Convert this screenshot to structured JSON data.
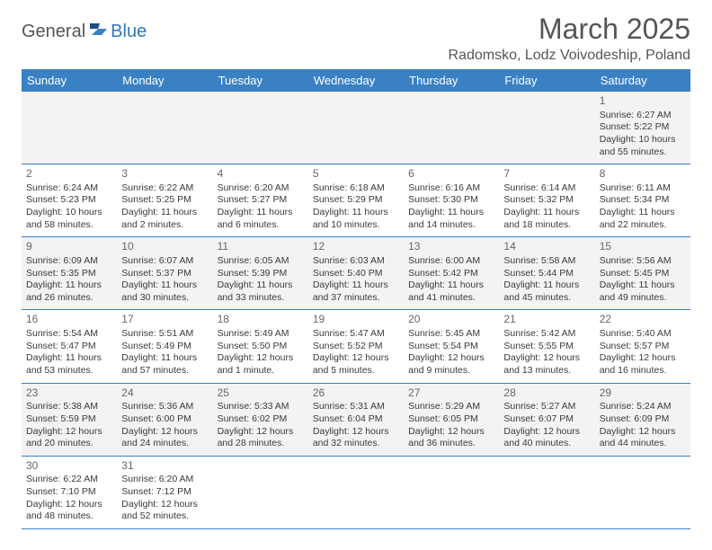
{
  "logo": {
    "part1": "General",
    "part2": "Blue"
  },
  "title": "March 2025",
  "location": "Radomsko, Lodz Voivodeship, Poland",
  "colors": {
    "header_bg": "#3a81c4",
    "header_text": "#ffffff",
    "row_alt_bg": "#f3f3f4",
    "border": "#3a81c4",
    "logo_blue": "#3178b8",
    "text": "#3a3a3a"
  },
  "weekdays": [
    "Sunday",
    "Monday",
    "Tuesday",
    "Wednesday",
    "Thursday",
    "Friday",
    "Saturday"
  ],
  "weeks": [
    [
      null,
      null,
      null,
      null,
      null,
      null,
      {
        "d": "1",
        "sr": "Sunrise: 6:27 AM",
        "ss": "Sunset: 5:22 PM",
        "dl1": "Daylight: 10 hours",
        "dl2": "and 55 minutes."
      }
    ],
    [
      {
        "d": "2",
        "sr": "Sunrise: 6:24 AM",
        "ss": "Sunset: 5:23 PM",
        "dl1": "Daylight: 10 hours",
        "dl2": "and 58 minutes."
      },
      {
        "d": "3",
        "sr": "Sunrise: 6:22 AM",
        "ss": "Sunset: 5:25 PM",
        "dl1": "Daylight: 11 hours",
        "dl2": "and 2 minutes."
      },
      {
        "d": "4",
        "sr": "Sunrise: 6:20 AM",
        "ss": "Sunset: 5:27 PM",
        "dl1": "Daylight: 11 hours",
        "dl2": "and 6 minutes."
      },
      {
        "d": "5",
        "sr": "Sunrise: 6:18 AM",
        "ss": "Sunset: 5:29 PM",
        "dl1": "Daylight: 11 hours",
        "dl2": "and 10 minutes."
      },
      {
        "d": "6",
        "sr": "Sunrise: 6:16 AM",
        "ss": "Sunset: 5:30 PM",
        "dl1": "Daylight: 11 hours",
        "dl2": "and 14 minutes."
      },
      {
        "d": "7",
        "sr": "Sunrise: 6:14 AM",
        "ss": "Sunset: 5:32 PM",
        "dl1": "Daylight: 11 hours",
        "dl2": "and 18 minutes."
      },
      {
        "d": "8",
        "sr": "Sunrise: 6:11 AM",
        "ss": "Sunset: 5:34 PM",
        "dl1": "Daylight: 11 hours",
        "dl2": "and 22 minutes."
      }
    ],
    [
      {
        "d": "9",
        "sr": "Sunrise: 6:09 AM",
        "ss": "Sunset: 5:35 PM",
        "dl1": "Daylight: 11 hours",
        "dl2": "and 26 minutes."
      },
      {
        "d": "10",
        "sr": "Sunrise: 6:07 AM",
        "ss": "Sunset: 5:37 PM",
        "dl1": "Daylight: 11 hours",
        "dl2": "and 30 minutes."
      },
      {
        "d": "11",
        "sr": "Sunrise: 6:05 AM",
        "ss": "Sunset: 5:39 PM",
        "dl1": "Daylight: 11 hours",
        "dl2": "and 33 minutes."
      },
      {
        "d": "12",
        "sr": "Sunrise: 6:03 AM",
        "ss": "Sunset: 5:40 PM",
        "dl1": "Daylight: 11 hours",
        "dl2": "and 37 minutes."
      },
      {
        "d": "13",
        "sr": "Sunrise: 6:00 AM",
        "ss": "Sunset: 5:42 PM",
        "dl1": "Daylight: 11 hours",
        "dl2": "and 41 minutes."
      },
      {
        "d": "14",
        "sr": "Sunrise: 5:58 AM",
        "ss": "Sunset: 5:44 PM",
        "dl1": "Daylight: 11 hours",
        "dl2": "and 45 minutes."
      },
      {
        "d": "15",
        "sr": "Sunrise: 5:56 AM",
        "ss": "Sunset: 5:45 PM",
        "dl1": "Daylight: 11 hours",
        "dl2": "and 49 minutes."
      }
    ],
    [
      {
        "d": "16",
        "sr": "Sunrise: 5:54 AM",
        "ss": "Sunset: 5:47 PM",
        "dl1": "Daylight: 11 hours",
        "dl2": "and 53 minutes."
      },
      {
        "d": "17",
        "sr": "Sunrise: 5:51 AM",
        "ss": "Sunset: 5:49 PM",
        "dl1": "Daylight: 11 hours",
        "dl2": "and 57 minutes."
      },
      {
        "d": "18",
        "sr": "Sunrise: 5:49 AM",
        "ss": "Sunset: 5:50 PM",
        "dl1": "Daylight: 12 hours",
        "dl2": "and 1 minute."
      },
      {
        "d": "19",
        "sr": "Sunrise: 5:47 AM",
        "ss": "Sunset: 5:52 PM",
        "dl1": "Daylight: 12 hours",
        "dl2": "and 5 minutes."
      },
      {
        "d": "20",
        "sr": "Sunrise: 5:45 AM",
        "ss": "Sunset: 5:54 PM",
        "dl1": "Daylight: 12 hours",
        "dl2": "and 9 minutes."
      },
      {
        "d": "21",
        "sr": "Sunrise: 5:42 AM",
        "ss": "Sunset: 5:55 PM",
        "dl1": "Daylight: 12 hours",
        "dl2": "and 13 minutes."
      },
      {
        "d": "22",
        "sr": "Sunrise: 5:40 AM",
        "ss": "Sunset: 5:57 PM",
        "dl1": "Daylight: 12 hours",
        "dl2": "and 16 minutes."
      }
    ],
    [
      {
        "d": "23",
        "sr": "Sunrise: 5:38 AM",
        "ss": "Sunset: 5:59 PM",
        "dl1": "Daylight: 12 hours",
        "dl2": "and 20 minutes."
      },
      {
        "d": "24",
        "sr": "Sunrise: 5:36 AM",
        "ss": "Sunset: 6:00 PM",
        "dl1": "Daylight: 12 hours",
        "dl2": "and 24 minutes."
      },
      {
        "d": "25",
        "sr": "Sunrise: 5:33 AM",
        "ss": "Sunset: 6:02 PM",
        "dl1": "Daylight: 12 hours",
        "dl2": "and 28 minutes."
      },
      {
        "d": "26",
        "sr": "Sunrise: 5:31 AM",
        "ss": "Sunset: 6:04 PM",
        "dl1": "Daylight: 12 hours",
        "dl2": "and 32 minutes."
      },
      {
        "d": "27",
        "sr": "Sunrise: 5:29 AM",
        "ss": "Sunset: 6:05 PM",
        "dl1": "Daylight: 12 hours",
        "dl2": "and 36 minutes."
      },
      {
        "d": "28",
        "sr": "Sunrise: 5:27 AM",
        "ss": "Sunset: 6:07 PM",
        "dl1": "Daylight: 12 hours",
        "dl2": "and 40 minutes."
      },
      {
        "d": "29",
        "sr": "Sunrise: 5:24 AM",
        "ss": "Sunset: 6:09 PM",
        "dl1": "Daylight: 12 hours",
        "dl2": "and 44 minutes."
      }
    ],
    [
      {
        "d": "30",
        "sr": "Sunrise: 6:22 AM",
        "ss": "Sunset: 7:10 PM",
        "dl1": "Daylight: 12 hours",
        "dl2": "and 48 minutes."
      },
      {
        "d": "31",
        "sr": "Sunrise: 6:20 AM",
        "ss": "Sunset: 7:12 PM",
        "dl1": "Daylight: 12 hours",
        "dl2": "and 52 minutes."
      },
      null,
      null,
      null,
      null,
      null
    ]
  ]
}
